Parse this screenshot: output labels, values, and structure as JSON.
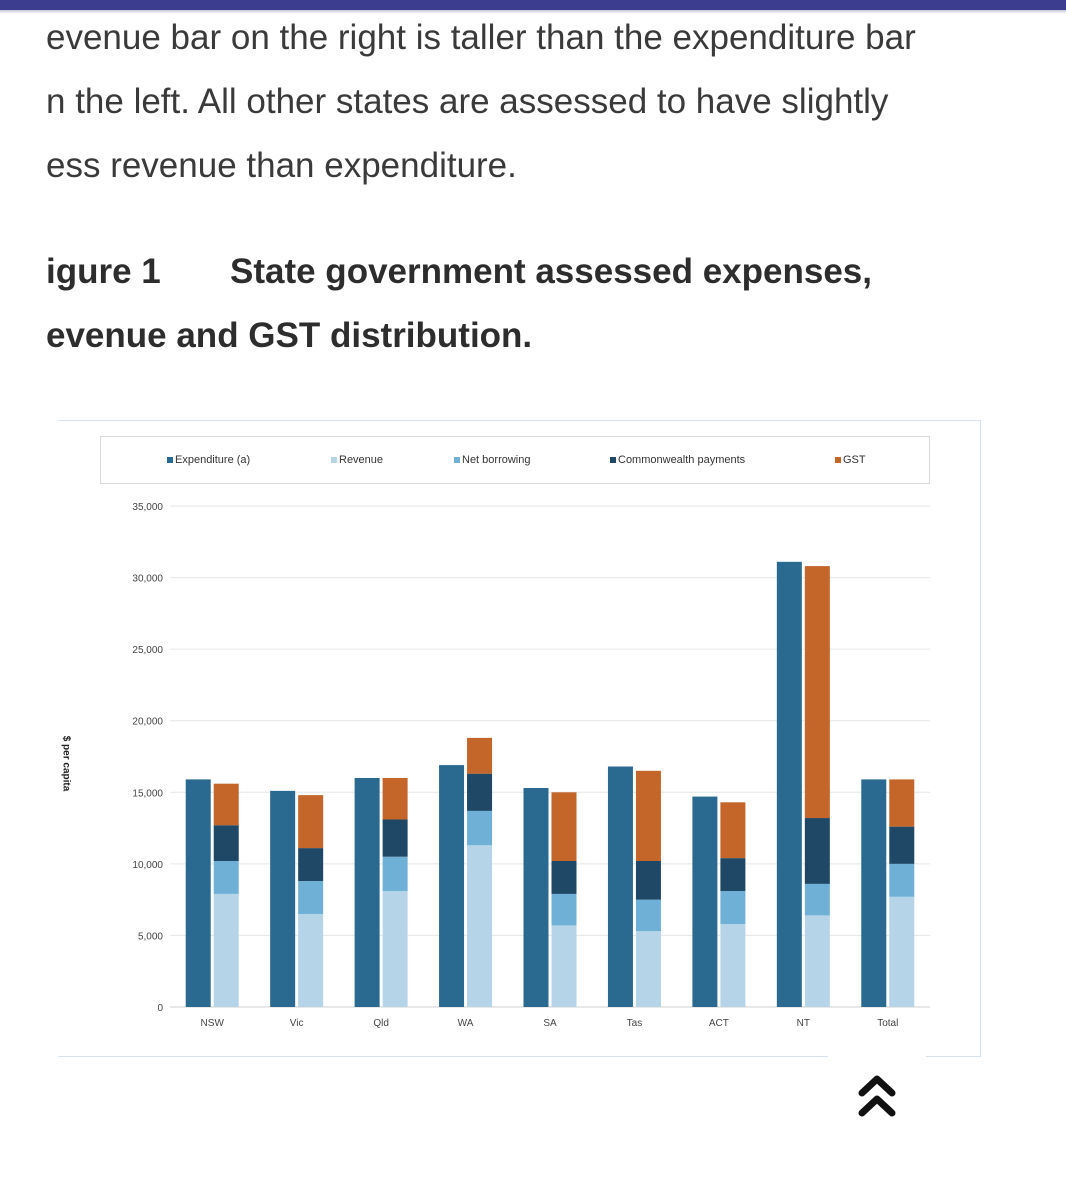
{
  "paragraph": {
    "lines": [
      "evenue bar on the right is taller than the expenditure bar",
      "n the left. All other states are assessed to have slightly",
      "ess revenue than expenditure."
    ]
  },
  "figure": {
    "number": "igure 1",
    "title_line1": "State government assessed expenses,",
    "title_line2": "evenue and GST distribution."
  },
  "scroll_top_icon": "double-chevron-up-icon",
  "chart_data": {
    "type": "bar",
    "categories": [
      "NSW",
      "Vic",
      "Qld",
      "WA",
      "SA",
      "Tas",
      "ACT",
      "NT",
      "Total"
    ],
    "ylabel": "$ per capita",
    "ylim": [
      0,
      35000
    ],
    "yticks": [
      "0",
      "5,000",
      "10,000",
      "15,000",
      "20,000",
      "25,000",
      "30,000",
      "35,000"
    ],
    "grid": true,
    "legend_position": "top",
    "legend": [
      "Expenditure (a)",
      "Revenue",
      "Net borrowing",
      "Commonwealth payments",
      "GST"
    ],
    "colors": {
      "Expenditure (a)": "#2a6a90",
      "Revenue": "#b5d4e8",
      "Net borrowing": "#6fb0d6",
      "Commonwealth payments": "#1e4866",
      "GST": "#c4652a"
    },
    "expenditure": [
      15900,
      15100,
      16000,
      16900,
      15300,
      16800,
      14700,
      31100,
      15900
    ],
    "stacked_series": [
      {
        "name": "Revenue",
        "values": [
          7900,
          6500,
          8100,
          11300,
          5700,
          5300,
          5800,
          6400,
          7700
        ]
      },
      {
        "name": "Net borrowing",
        "values": [
          2300,
          2300,
          2400,
          2400,
          2200,
          2200,
          2300,
          2200,
          2300
        ]
      },
      {
        "name": "Commonwealth payments",
        "values": [
          2500,
          2300,
          2600,
          2600,
          2300,
          2700,
          2300,
          4600,
          2600
        ]
      },
      {
        "name": "GST",
        "values": [
          2900,
          3700,
          2900,
          2500,
          4800,
          6300,
          3900,
          17600,
          3300
        ]
      }
    ]
  }
}
